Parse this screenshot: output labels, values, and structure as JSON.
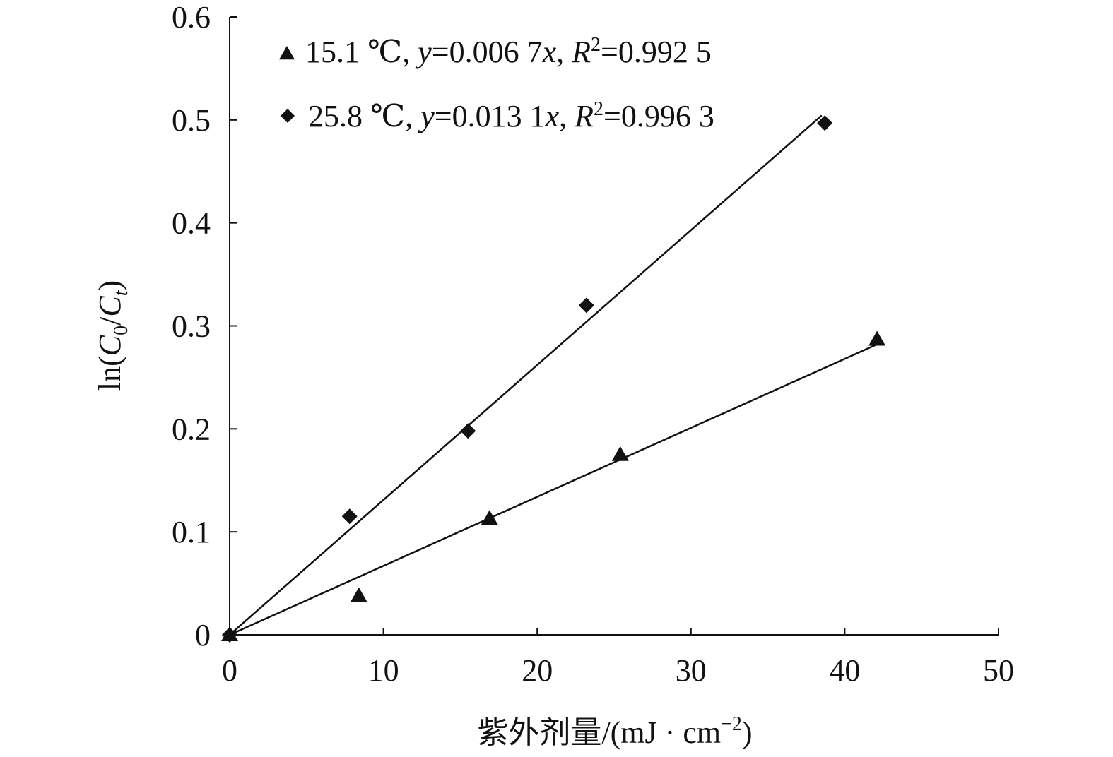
{
  "chart_data": {
    "type": "scatter",
    "xlabel": "紫外剂量/(mJ · cm",
    "xlabel_sup": "−2",
    "xlabel_close": ")",
    "ylabel": {
      "prefix": "ln(",
      "c0": "C",
      "c0_sub": "0",
      "slash": "/",
      "ct": "C",
      "ct_sub": "t",
      "suffix": ")"
    },
    "xlim": [
      0,
      50
    ],
    "ylim": [
      0,
      0.6
    ],
    "x_ticks": [
      "0",
      "10",
      "20",
      "30",
      "40",
      "50"
    ],
    "y_ticks": [
      "0",
      "0.1",
      "0.2",
      "0.3",
      "0.4",
      "0.5",
      "0.6"
    ],
    "grid": false,
    "legend_position": "top-left",
    "series": [
      {
        "name": "15.1 ℃",
        "marker": "triangle",
        "x": [
          0,
          8.4,
          16.9,
          25.4,
          42.1
        ],
        "y": [
          0,
          0.038,
          0.113,
          0.175,
          0.287
        ],
        "fit": {
          "slope": 0.0067,
          "x_range": [
            0,
            42.1
          ]
        },
        "legend": {
          "temp": "15.1 ℃, ",
          "y": "y",
          "eq": "=0.006 7",
          "x": "x",
          "comma": ", ",
          "r": "R",
          "r_sup": "2",
          "r_val": "=0.992 5"
        }
      },
      {
        "name": "25.8 ℃",
        "marker": "diamond",
        "x": [
          0,
          7.8,
          15.5,
          23.2,
          38.7
        ],
        "y": [
          0,
          0.115,
          0.198,
          0.32,
          0.497
        ],
        "fit": {
          "slope": 0.0131,
          "x_range": [
            0,
            38.5
          ]
        },
        "legend": {
          "temp": "25.8 ℃, ",
          "y": "y",
          "eq": "=0.013 1",
          "x": "x",
          "comma": ", ",
          "r": "R",
          "r_sup": "2",
          "r_val": "=0.996 3"
        }
      }
    ]
  }
}
